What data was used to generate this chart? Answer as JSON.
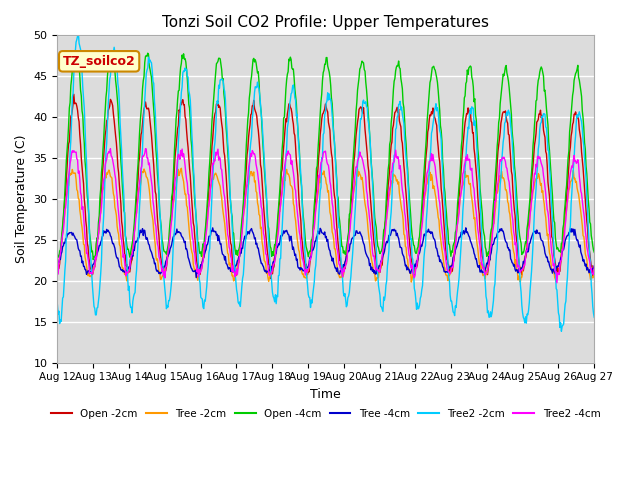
{
  "title": "Tonzi Soil CO2 Profile: Upper Temperatures",
  "xlabel": "Time",
  "ylabel": "Soil Temperature (C)",
  "ylim": [
    10,
    50
  ],
  "background_color": "#dcdcdc",
  "fig_color": "#ffffff",
  "legend_label": "TZ_soilco2",
  "x_tick_labels": [
    "Aug 12",
    "Aug 13",
    "Aug 14",
    "Aug 15",
    "Aug 16",
    "Aug 17",
    "Aug 18",
    "Aug 19",
    "Aug 20",
    "Aug 21",
    "Aug 22",
    "Aug 23",
    "Aug 24",
    "Aug 25",
    "Aug 26",
    "Aug 27"
  ],
  "series": [
    {
      "label": "Open -2cm",
      "color": "#cc0000"
    },
    {
      "label": "Tree -2cm",
      "color": "#ff9900"
    },
    {
      "label": "Open -4cm",
      "color": "#00cc00"
    },
    {
      "label": "Tree -4cm",
      "color": "#0000cc"
    },
    {
      "label": "Tree2 -2cm",
      "color": "#00ccff"
    },
    {
      "label": "Tree2 -4cm",
      "color": "#ff00ff"
    }
  ],
  "num_days": 15,
  "pts_per_day": 48
}
